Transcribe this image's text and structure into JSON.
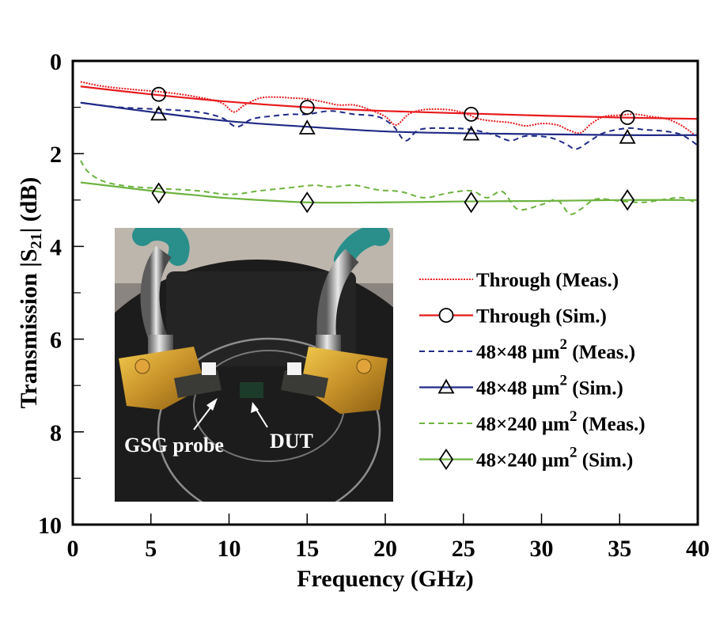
{
  "chart_data": {
    "type": "line",
    "title": "",
    "xlabel": "Frequency (GHz)",
    "ylabel_parts": {
      "prefix": "Transmission  |S",
      "sub": "21",
      "suffix": "|  (dB)"
    },
    "xlim": [
      0,
      40
    ],
    "ylim": [
      0,
      10
    ],
    "y_inverted": true,
    "x_ticks": [
      0,
      5,
      10,
      15,
      20,
      25,
      30,
      35,
      40
    ],
    "y_ticks": [
      0,
      2,
      4,
      6,
      8,
      10
    ],
    "y_minor_ticks": [
      1,
      3,
      5,
      7,
      9
    ],
    "grid": false,
    "legend_placement": "lower-right inside plot",
    "series": [
      {
        "id": "through-meas",
        "name": "Through  (Meas.)",
        "color": "#e8191c",
        "style": "dotted",
        "marker": "none",
        "x": [
          0.5,
          2,
          4,
          6,
          8,
          9.5,
          10.3,
          11,
          12,
          13,
          14,
          15,
          16,
          17,
          18,
          19,
          20,
          20.7,
          21.5,
          22.5,
          24,
          25,
          26,
          27,
          28,
          29,
          30,
          31,
          31.8,
          32.5,
          33.2,
          34,
          35,
          36,
          37,
          38,
          39,
          40
        ],
        "y": [
          0.45,
          0.55,
          0.62,
          0.68,
          0.78,
          0.9,
          1.1,
          0.95,
          0.8,
          0.78,
          0.8,
          0.82,
          0.88,
          0.95,
          0.95,
          1.05,
          1.2,
          1.38,
          1.15,
          1.05,
          1.05,
          1.12,
          1.25,
          1.3,
          1.33,
          1.4,
          1.35,
          1.38,
          1.5,
          1.55,
          1.35,
          1.2,
          1.17,
          1.15,
          1.2,
          1.25,
          1.4,
          1.65
        ]
      },
      {
        "id": "through-sim",
        "name": "Through  (Sim.)",
        "color": "#e8191c",
        "style": "solid",
        "marker": "circle",
        "x": [
          0.5,
          5,
          10,
          15,
          20,
          25,
          30,
          35,
          40
        ],
        "y": [
          0.55,
          0.72,
          0.88,
          1.0,
          1.08,
          1.13,
          1.18,
          1.22,
          1.25
        ],
        "marker_x": [
          5.5,
          15,
          25.5,
          35.5
        ],
        "marker_y": [
          0.72,
          1.0,
          1.15,
          1.22
        ]
      },
      {
        "id": "48x48-meas",
        "name": "48×48 μm² (Meas.)",
        "color": "#1f2a86",
        "style": "dashed",
        "marker": "none",
        "x": [
          0.5,
          3,
          6,
          8,
          9.5,
          10.5,
          11.5,
          13,
          14,
          15,
          16.5,
          18,
          19.5,
          20.5,
          21.3,
          22.2,
          24,
          25.5,
          27,
          28,
          29,
          30.5,
          31.5,
          32.2,
          33,
          34,
          35.5,
          36.5,
          38,
          39,
          40
        ],
        "y": [
          0.9,
          1.0,
          1.05,
          1.1,
          1.22,
          1.42,
          1.25,
          1.18,
          1.15,
          1.15,
          1.08,
          1.15,
          1.2,
          1.4,
          1.72,
          1.48,
          1.45,
          1.48,
          1.6,
          1.72,
          1.62,
          1.65,
          1.78,
          1.9,
          1.75,
          1.55,
          1.45,
          1.48,
          1.52,
          1.6,
          1.82
        ]
      },
      {
        "id": "48x48-sim",
        "name": "48×48 μm² (Sim.)",
        "color": "#1f2a86",
        "style": "solid",
        "marker": "triangle",
        "x": [
          0.5,
          5,
          10,
          15,
          20,
          25,
          30,
          35,
          40
        ],
        "y": [
          0.9,
          1.1,
          1.3,
          1.42,
          1.52,
          1.56,
          1.58,
          1.6,
          1.6
        ],
        "marker_x": [
          5.5,
          15,
          25.5,
          35.5
        ],
        "marker_y": [
          1.15,
          1.45,
          1.58,
          1.65
        ]
      },
      {
        "id": "48x240-meas",
        "name": "48×240 μm² (Meas.)",
        "color": "#6db33f",
        "style": "dashed",
        "marker": "none",
        "x": [
          0.5,
          1,
          2,
          3.5,
          5.5,
          8,
          10,
          12,
          14,
          15.5,
          16.5,
          18,
          19.5,
          21,
          22.5,
          24,
          25.5,
          26.5,
          27.5,
          28.5,
          30,
          31,
          31.8,
          32.5,
          33.5,
          35,
          36.5,
          38,
          39,
          40
        ],
        "y": [
          2.15,
          2.4,
          2.6,
          2.7,
          2.75,
          2.8,
          2.88,
          2.8,
          2.73,
          2.68,
          2.72,
          2.68,
          2.78,
          2.82,
          2.95,
          2.85,
          2.8,
          2.95,
          2.82,
          3.2,
          3.1,
          3.0,
          3.3,
          3.2,
          2.98,
          3.02,
          3.05,
          2.98,
          2.95,
          3.08
        ]
      },
      {
        "id": "48x240-sim",
        "name": "48×240 μm² (Sim.)",
        "color": "#6db33f",
        "style": "solid",
        "marker": "diamond",
        "x": [
          0.5,
          3,
          5.5,
          8,
          10,
          15,
          20,
          25,
          30,
          35,
          40
        ],
        "y": [
          2.62,
          2.72,
          2.82,
          2.9,
          2.96,
          3.05,
          3.05,
          3.03,
          3.02,
          3.0,
          3.0
        ],
        "marker_x": [
          5.5,
          15,
          25.5,
          35.5
        ],
        "marker_y": [
          2.85,
          3.05,
          3.05,
          3.0
        ]
      }
    ],
    "legend": [
      {
        "series": "through-meas",
        "text": "Through  (Meas.)",
        "sup": ""
      },
      {
        "series": "through-sim",
        "text": "Through  (Sim.)",
        "sup": ""
      },
      {
        "series": "48x48-meas",
        "text_a": "48×48 μm",
        "sup": "2",
        "text_b": " (Meas.)"
      },
      {
        "series": "48x48-sim",
        "text_a": "48×48 μm",
        "sup": "2",
        "text_b": "  (Sim.)"
      },
      {
        "series": "48x240-meas",
        "text_a": "48×240 μm",
        "sup": "2",
        "text_b": " (Meas.)"
      },
      {
        "series": "48x240-sim",
        "text_a": "48×240 μm",
        "sup": "2",
        "text_b": " (Sim.)"
      }
    ],
    "inset_photo": {
      "description": "Photo of measurement setup with two gold GSG probes on a black chuck",
      "labels": [
        "GSG probe",
        "DUT"
      ]
    }
  }
}
